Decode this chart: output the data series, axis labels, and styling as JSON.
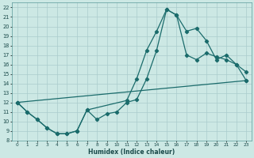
{
  "xlabel": "Humidex (Indice chaleur)",
  "bg_color": "#cce8e4",
  "grid_color": "#aacccc",
  "line_color": "#1a6b6b",
  "xlim": [
    -0.5,
    23.5
  ],
  "ylim": [
    8,
    22.5
  ],
  "xticks": [
    0,
    1,
    2,
    3,
    4,
    5,
    6,
    7,
    8,
    9,
    10,
    11,
    12,
    13,
    14,
    15,
    16,
    17,
    18,
    19,
    20,
    21,
    22,
    23
  ],
  "yticks": [
    8,
    9,
    10,
    11,
    12,
    13,
    14,
    15,
    16,
    17,
    18,
    19,
    20,
    21,
    22
  ],
  "line1_x": [
    0,
    1,
    2,
    3,
    4,
    5,
    6,
    7,
    11,
    12,
    13,
    14,
    15,
    16,
    17,
    18,
    19,
    20,
    21,
    22,
    23
  ],
  "line1_y": [
    12,
    11,
    10.2,
    9.3,
    8.7,
    8.7,
    9.0,
    11.2,
    12.2,
    14.5,
    17.5,
    19.5,
    21.8,
    21.2,
    19.5,
    19.8,
    18.5,
    16.5,
    17.0,
    16.0,
    15.2
  ],
  "line2_x": [
    0,
    1,
    2,
    3,
    4,
    5,
    6,
    7,
    8,
    9,
    10,
    11,
    12,
    13,
    14,
    15,
    16,
    17,
    18,
    19,
    20,
    21,
    22,
    23
  ],
  "line2_y": [
    12,
    11,
    10.2,
    9.3,
    8.7,
    8.7,
    9.0,
    11.2,
    10.2,
    10.8,
    11.0,
    12.0,
    12.3,
    14.5,
    17.5,
    21.8,
    21.2,
    17.0,
    16.5,
    17.2,
    16.8,
    16.5,
    16.0,
    14.3
  ],
  "line3_x": [
    0,
    23
  ],
  "line3_y": [
    12,
    14.3
  ]
}
